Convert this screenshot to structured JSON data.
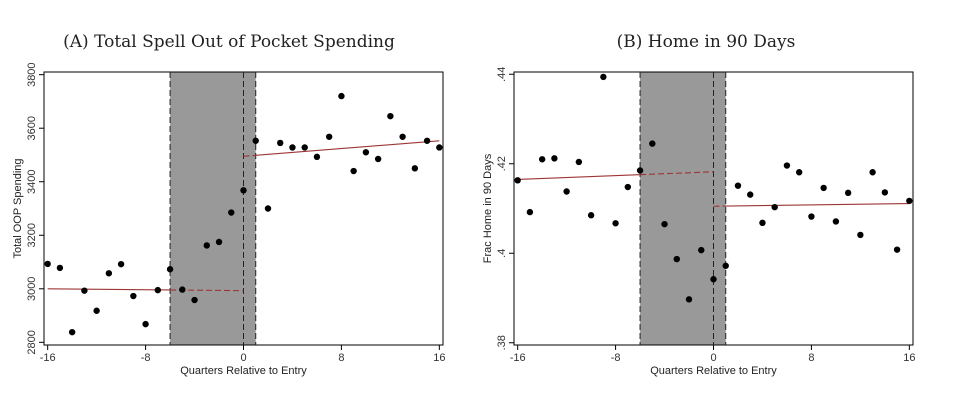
{
  "chart_data": [
    {
      "type": "scatter",
      "caption": "(A) Total Spell Out of Pocket Spending",
      "xlabel": "Quarters Relative to Entry",
      "ylabel": "Total OOP Spending",
      "xlim": [
        -16.3,
        16.3
      ],
      "ylim": [
        2790,
        3810
      ],
      "xticks": [
        -16,
        -8,
        0,
        8,
        16
      ],
      "xtick_labels": [
        "-16",
        "-8",
        "0",
        "8",
        "16"
      ],
      "yticks": [
        2800,
        3000,
        3200,
        3400,
        3600,
        3800
      ],
      "ytick_labels": [
        "2800",
        "3000",
        "3200",
        "3400",
        "3600",
        "3800"
      ],
      "shaded_region": [
        -6,
        1
      ],
      "dashed_vlines": [
        -6,
        0,
        1
      ],
      "fit_pre": {
        "x": [
          -16,
          0
        ],
        "y": [
          3000,
          2993
        ]
      },
      "fit_post": {
        "x": [
          0,
          16
        ],
        "y": [
          3495,
          3553
        ]
      },
      "points": {
        "x": [
          -16,
          -15,
          -14,
          -13,
          -12,
          -11,
          -10,
          -9,
          -8,
          -7,
          -6,
          -5,
          -4,
          -3,
          -2,
          -1,
          0,
          1,
          2,
          3,
          4,
          5,
          6,
          7,
          8,
          9,
          10,
          11,
          12,
          13,
          14,
          15,
          16
        ],
        "y": [
          3093,
          3078,
          2838,
          2993,
          2918,
          3058,
          3092,
          2973,
          2868,
          2995,
          3073,
          2997,
          2958,
          3162,
          3175,
          3285,
          3368,
          3553,
          3300,
          3545,
          3528,
          3528,
          3493,
          3568,
          3720,
          3440,
          3510,
          3485,
          3645,
          3568,
          3450,
          3553,
          3528
        ]
      }
    },
    {
      "type": "scatter",
      "caption": "(B) Home in 90 Days",
      "xlabel": "Quarters Relative to Entry",
      "ylabel": "Frac Home in 90 Days",
      "xlim": [
        -16.3,
        16.3
      ],
      "ylim": [
        0.3795,
        0.4405
      ],
      "xticks": [
        -16,
        -8,
        0,
        8,
        16
      ],
      "xtick_labels": [
        "-16",
        "-8",
        "0",
        "8",
        "16"
      ],
      "yticks": [
        0.38,
        0.4,
        0.42,
        0.44
      ],
      "ytick_labels": [
        ".38",
        ".4",
        ".42",
        ".44"
      ],
      "shaded_region": [
        -6,
        1
      ],
      "dashed_vlines": [
        -6,
        0,
        1
      ],
      "fit_pre": {
        "x": [
          -16,
          0
        ],
        "y": [
          0.4165,
          0.4182
        ]
      },
      "fit_post": {
        "x": [
          0,
          16
        ],
        "y": [
          0.4105,
          0.4111
        ]
      },
      "points": {
        "x": [
          -16,
          -15,
          -14,
          -13,
          -12,
          -11,
          -10,
          -9,
          -8,
          -7,
          -6,
          -5,
          -4,
          -3,
          -2,
          -1,
          0,
          1,
          2,
          3,
          4,
          5,
          6,
          7,
          8,
          9,
          10,
          11,
          12,
          13,
          14,
          15,
          16
        ],
        "y": [
          0.4163,
          0.4092,
          0.421,
          0.4212,
          0.4138,
          0.4204,
          0.4085,
          0.4394,
          0.4067,
          0.4148,
          0.4185,
          0.4245,
          0.4065,
          0.3987,
          0.3897,
          0.4007,
          0.3942,
          0.3972,
          0.4151,
          0.4131,
          0.4068,
          0.4103,
          0.4196,
          0.4181,
          0.4082,
          0.4146,
          0.4071,
          0.4135,
          0.4041,
          0.4181,
          0.4136,
          0.4008,
          0.4117
        ]
      }
    }
  ]
}
